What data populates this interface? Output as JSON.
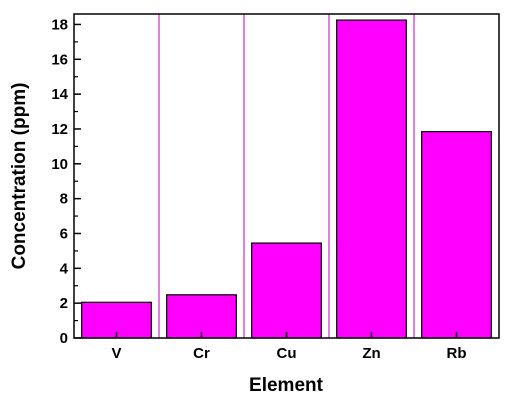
{
  "chart_data": {
    "type": "bar",
    "categories": [
      "V",
      "Cr",
      "Cu",
      "Zn",
      "Rb"
    ],
    "values": [
      2.05,
      2.48,
      5.45,
      18.25,
      11.85
    ],
    "xlabel": "Element",
    "ylabel": "Concentration (ppm)",
    "ylim": [
      0,
      18.6
    ],
    "yticks": [
      0,
      2,
      4,
      6,
      8,
      10,
      12,
      14,
      16,
      18
    ],
    "grid": false,
    "legend": "none",
    "bar_color": "#ff00ff",
    "separator_color": "#c000c0"
  }
}
